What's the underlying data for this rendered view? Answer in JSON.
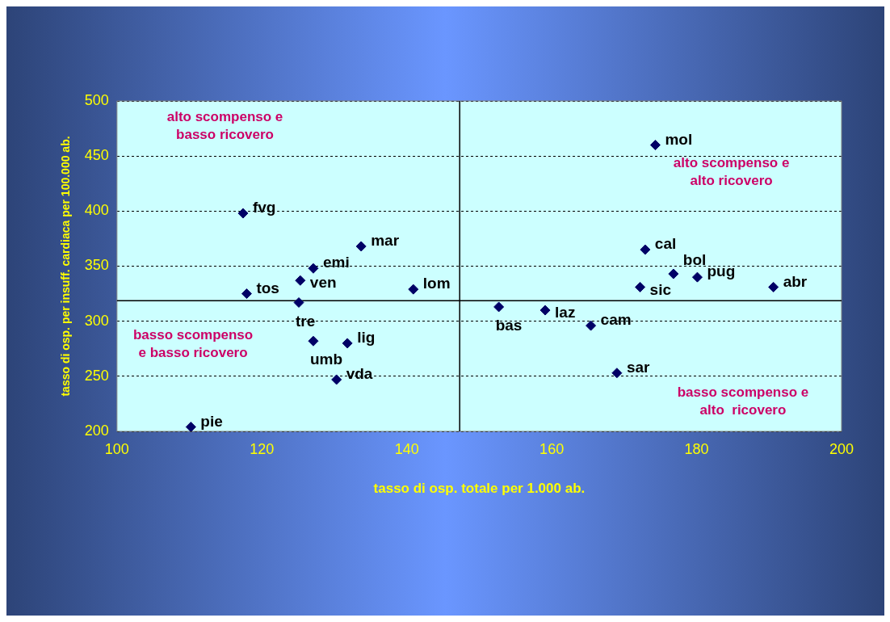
{
  "chart_data": {
    "type": "scatter",
    "xlabel": "tasso di osp. totale per 1.000 ab.",
    "ylabel": "tasso di osp. per insuff. cardiaca per 100.000 ab.",
    "xlim": [
      100,
      200
    ],
    "xticks": [
      100,
      120,
      140,
      160,
      180,
      200
    ],
    "ylim": [
      200,
      500
    ],
    "yticks": [
      200,
      250,
      300,
      350,
      400,
      450,
      500
    ],
    "grid": "y",
    "marker": "diamond",
    "legend": false,
    "series": [
      {
        "color": "#000066",
        "x": [
          110.2,
          117.4,
          117.9,
          125.1,
          125.3,
          127.1,
          127.1,
          131.8,
          130.3,
          133.7,
          140.9,
          152.7,
          159.1,
          165.4,
          169.0,
          172.2,
          172.9,
          176.8,
          180.1,
          190.6,
          174.3
        ],
        "values": [
          204,
          398,
          325,
          317,
          337,
          348,
          282,
          280,
          247,
          368,
          329,
          313,
          310,
          296,
          253,
          331,
          365,
          343,
          340,
          331,
          460
        ]
      }
    ],
    "ref_lines": [
      {
        "axis": "x",
        "value": 147.3,
        "color": "#000000"
      },
      {
        "axis": "y",
        "value": 318.7,
        "color": "#000000"
      }
    ],
    "annotations": [
      "alto scompenso e\nbasso ricovero",
      "alto scompenso e\nalto ricovero",
      "basso scompenso\ne basso ricovero",
      "basso scompenso e\nalto  ricovero",
      {
        "text": "pie",
        "x": 110.2,
        "y": 204
      },
      {
        "text": "fvg",
        "x": 117.4,
        "y": 398
      },
      {
        "text": "tos",
        "x": 117.9,
        "y": 325
      },
      {
        "text": "tre",
        "x": 125.1,
        "y": 317
      },
      {
        "text": "ven",
        "x": 125.3,
        "y": 337
      },
      {
        "text": "emi",
        "x": 127.1,
        "y": 348
      },
      {
        "text": "umb",
        "x": 127.1,
        "y": 282
      },
      {
        "text": "lig",
        "x": 131.8,
        "y": 280
      },
      {
        "text": "vda",
        "x": 130.3,
        "y": 247
      },
      {
        "text": "mar",
        "x": 133.7,
        "y": 368
      },
      {
        "text": "lom",
        "x": 140.9,
        "y": 329
      },
      {
        "text": "bas",
        "x": 152.7,
        "y": 313
      },
      {
        "text": "laz",
        "x": 159.1,
        "y": 310
      },
      {
        "text": "cam",
        "x": 165.4,
        "y": 296
      },
      {
        "text": "sar",
        "x": 169.0,
        "y": 253
      },
      {
        "text": "sic",
        "x": 172.2,
        "y": 331
      },
      {
        "text": "cal",
        "x": 172.9,
        "y": 365
      },
      {
        "text": "bol",
        "x": 176.8,
        "y": 343
      },
      {
        "text": "pug",
        "x": 180.1,
        "y": 340
      },
      {
        "text": "abr",
        "x": 190.6,
        "y": 331
      },
      {
        "text": "mol",
        "x": 174.3,
        "y": 460
      }
    ]
  }
}
